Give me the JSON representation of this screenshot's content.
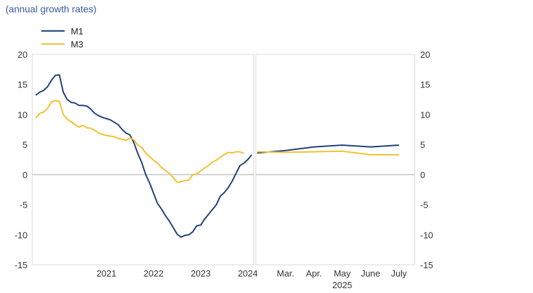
{
  "subtitle": "(annual growth rates)",
  "chart_data": {
    "type": "line",
    "yticks": [
      20,
      15,
      10,
      5,
      0,
      -5,
      -10,
      -15
    ],
    "ylim": [
      -15,
      20
    ],
    "legend": [
      {
        "name": "M1",
        "color": "#1f3f7a"
      },
      {
        "name": "M3",
        "color": "#f2c12e"
      }
    ],
    "left_panel": {
      "x_tick_labels": [
        "2021",
        "2022",
        "2023",
        "2024"
      ],
      "series": [
        {
          "name": "M1",
          "color": "#1f3f7a",
          "points": [
            [
              "2020-01",
              13.2
            ],
            [
              "2020-02",
              13.7
            ],
            [
              "2020-03",
              14.0
            ],
            [
              "2020-04",
              14.6
            ],
            [
              "2020-05",
              15.7
            ],
            [
              "2020-06",
              16.5
            ],
            [
              "2020-07",
              16.6
            ],
            [
              "2020-08",
              13.7
            ],
            [
              "2020-09",
              12.5
            ],
            [
              "2020-10",
              12.0
            ],
            [
              "2020-11",
              11.9
            ],
            [
              "2020-12",
              11.5
            ],
            [
              "2021-01",
              11.5
            ],
            [
              "2021-02",
              11.4
            ],
            [
              "2021-03",
              10.9
            ],
            [
              "2021-04",
              10.2
            ],
            [
              "2021-05",
              9.8
            ],
            [
              "2021-06",
              9.5
            ],
            [
              "2021-07",
              9.3
            ],
            [
              "2021-08",
              9.1
            ],
            [
              "2021-09",
              8.7
            ],
            [
              "2021-10",
              8.3
            ],
            [
              "2021-11",
              7.5
            ],
            [
              "2021-12",
              6.9
            ],
            [
              "2022-01",
              6.6
            ],
            [
              "2022-02",
              5.3
            ],
            [
              "2022-03",
              3.5
            ],
            [
              "2022-04",
              2.0
            ],
            [
              "2022-05",
              0.0
            ],
            [
              "2022-06",
              -1.4
            ],
            [
              "2022-07",
              -3.1
            ],
            [
              "2022-08",
              -4.8
            ],
            [
              "2022-09",
              -5.7
            ],
            [
              "2022-10",
              -6.8
            ],
            [
              "2022-11",
              -7.7
            ],
            [
              "2022-12",
              -8.8
            ],
            [
              "2023-01",
              -9.9
            ],
            [
              "2023-02",
              -10.4
            ],
            [
              "2023-03",
              -10.1
            ],
            [
              "2023-04",
              -10.0
            ],
            [
              "2023-05",
              -9.5
            ],
            [
              "2023-06",
              -8.5
            ],
            [
              "2023-07",
              -8.4
            ],
            [
              "2023-08",
              -7.4
            ],
            [
              "2023-09",
              -6.6
            ],
            [
              "2023-10",
              -5.8
            ],
            [
              "2023-11",
              -5.0
            ],
            [
              "2023-12",
              -3.6
            ],
            [
              "2024-01",
              -3.0
            ],
            [
              "2024-02",
              -2.2
            ],
            [
              "2024-03",
              -1.1
            ],
            [
              "2024-04",
              0.2
            ],
            [
              "2024-05",
              1.5
            ],
            [
              "2024-06",
              1.9
            ],
            [
              "2024-07",
              2.5
            ],
            [
              "2024-08",
              3.3
            ]
          ]
        },
        {
          "name": "M3",
          "color": "#f2c12e",
          "points": [
            [
              "2020-01",
              9.4
            ],
            [
              "2020-02",
              10.2
            ],
            [
              "2020-03",
              10.4
            ],
            [
              "2020-04",
              11.0
            ],
            [
              "2020-05",
              12.1
            ],
            [
              "2020-06",
              12.3
            ],
            [
              "2020-07",
              12.2
            ],
            [
              "2020-08",
              10.0
            ],
            [
              "2020-09",
              9.2
            ],
            [
              "2020-10",
              8.8
            ],
            [
              "2020-11",
              8.3
            ],
            [
              "2020-12",
              7.9
            ],
            [
              "2021-01",
              8.2
            ],
            [
              "2021-02",
              7.8
            ],
            [
              "2021-03",
              7.7
            ],
            [
              "2021-04",
              7.4
            ],
            [
              "2021-05",
              6.9
            ],
            [
              "2021-06",
              6.7
            ],
            [
              "2021-07",
              6.5
            ],
            [
              "2021-08",
              6.4
            ],
            [
              "2021-09",
              6.3
            ],
            [
              "2021-10",
              6.0
            ],
            [
              "2021-11",
              5.9
            ],
            [
              "2021-12",
              5.7
            ],
            [
              "2022-01",
              6.1
            ],
            [
              "2022-02",
              5.8
            ],
            [
              "2022-03",
              4.9
            ],
            [
              "2022-04",
              4.5
            ],
            [
              "2022-05",
              3.6
            ],
            [
              "2022-06",
              3.0
            ],
            [
              "2022-07",
              2.4
            ],
            [
              "2022-08",
              1.9
            ],
            [
              "2022-09",
              1.2
            ],
            [
              "2022-10",
              0.7
            ],
            [
              "2022-11",
              0.2
            ],
            [
              "2022-12",
              -0.5
            ],
            [
              "2023-01",
              -1.3
            ],
            [
              "2023-02",
              -1.2
            ],
            [
              "2023-03",
              -1.0
            ],
            [
              "2023-04",
              -0.9
            ],
            [
              "2023-05",
              0.0
            ],
            [
              "2023-06",
              0.1
            ],
            [
              "2023-07",
              0.6
            ],
            [
              "2023-08",
              1.1
            ],
            [
              "2023-09",
              1.5
            ],
            [
              "2023-10",
              2.1
            ],
            [
              "2023-11",
              2.4
            ],
            [
              "2023-12",
              2.9
            ],
            [
              "2024-01",
              3.3
            ],
            [
              "2024-02",
              3.7
            ],
            [
              "2024-03",
              3.6
            ],
            [
              "2024-04",
              3.8
            ],
            [
              "2024-05",
              3.8
            ],
            [
              "2024-06",
              3.5
            ]
          ]
        }
      ]
    },
    "right_panel": {
      "x_tick_labels": [
        "Mar.",
        "Apr.",
        "May",
        "June",
        "July"
      ],
      "year_label": "2025",
      "series": [
        {
          "name": "M1",
          "color": "#1f3f7a",
          "points": [
            [
              "2025-02",
              3.6
            ],
            [
              "2025-03",
              4.0
            ],
            [
              "2025-04",
              4.6
            ],
            [
              "2025-05",
              4.9
            ],
            [
              "2025-06",
              4.6
            ],
            [
              "2025-07",
              4.9
            ]
          ]
        },
        {
          "name": "M3",
          "color": "#f2c12e",
          "points": [
            [
              "2025-02",
              3.8
            ],
            [
              "2025-03",
              3.7
            ],
            [
              "2025-04",
              3.8
            ],
            [
              "2025-05",
              3.9
            ],
            [
              "2025-06",
              3.3
            ],
            [
              "2025-07",
              3.3
            ]
          ]
        }
      ]
    }
  }
}
